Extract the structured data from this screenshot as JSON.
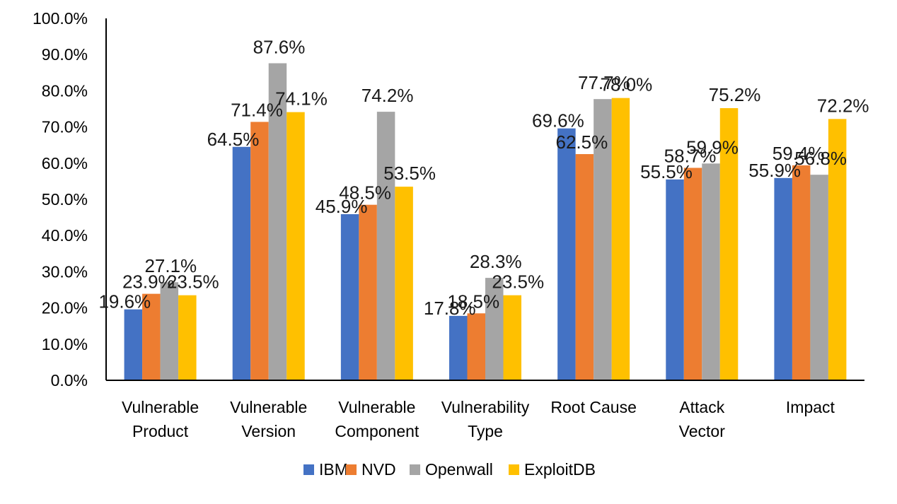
{
  "chart_data": {
    "type": "bar",
    "categories": [
      [
        "Vulnerable",
        "Product"
      ],
      [
        "Vulnerable",
        "Version"
      ],
      [
        "Vulnerable",
        "Component"
      ],
      [
        "Vulnerability",
        "Type"
      ],
      [
        "Root Cause"
      ],
      [
        "Attack",
        "Vector"
      ],
      [
        "Impact"
      ]
    ],
    "series": [
      {
        "name": "IBM",
        "color": "#4472C4",
        "values": [
          19.6,
          64.5,
          45.9,
          17.8,
          69.6,
          55.5,
          55.9
        ]
      },
      {
        "name": "NVD",
        "color": "#ED7D31",
        "values": [
          23.9,
          71.4,
          48.5,
          18.5,
          62.5,
          58.7,
          59.4
        ]
      },
      {
        "name": "Openwall",
        "color": "#A5A5A5",
        "values": [
          27.1,
          87.6,
          74.2,
          28.3,
          77.7,
          59.9,
          56.8
        ]
      },
      {
        "name": "ExploitDB",
        "color": "#FFC000",
        "values": [
          23.5,
          74.1,
          53.5,
          23.5,
          78.0,
          75.2,
          72.2
        ]
      }
    ],
    "data_labels": [
      [
        "19.6%",
        "64.5%",
        "45.9%",
        "17.8%",
        "69.6%",
        "55.5%",
        "55.9%"
      ],
      [
        "23.9%",
        "71.4%",
        "48.5%",
        "18.5%",
        "62.5%",
        "58.7%",
        "59.4%"
      ],
      [
        "27.1%",
        "87.6%",
        "74.2%",
        "28.3%",
        "77.7%",
        "59.9%",
        "56.8%"
      ],
      [
        "23.5%",
        "74.1%",
        "53.5%",
        "23.5%",
        "78.0%",
        "75.2%",
        "72.2%"
      ]
    ],
    "yticks": [
      "0.0%",
      "10.0%",
      "20.0%",
      "30.0%",
      "40.0%",
      "50.0%",
      "60.0%",
      "70.0%",
      "80.0%",
      "90.0%",
      "100.0%"
    ],
    "ylim": [
      0,
      100
    ],
    "grid": false,
    "legend_position": "bottom"
  }
}
